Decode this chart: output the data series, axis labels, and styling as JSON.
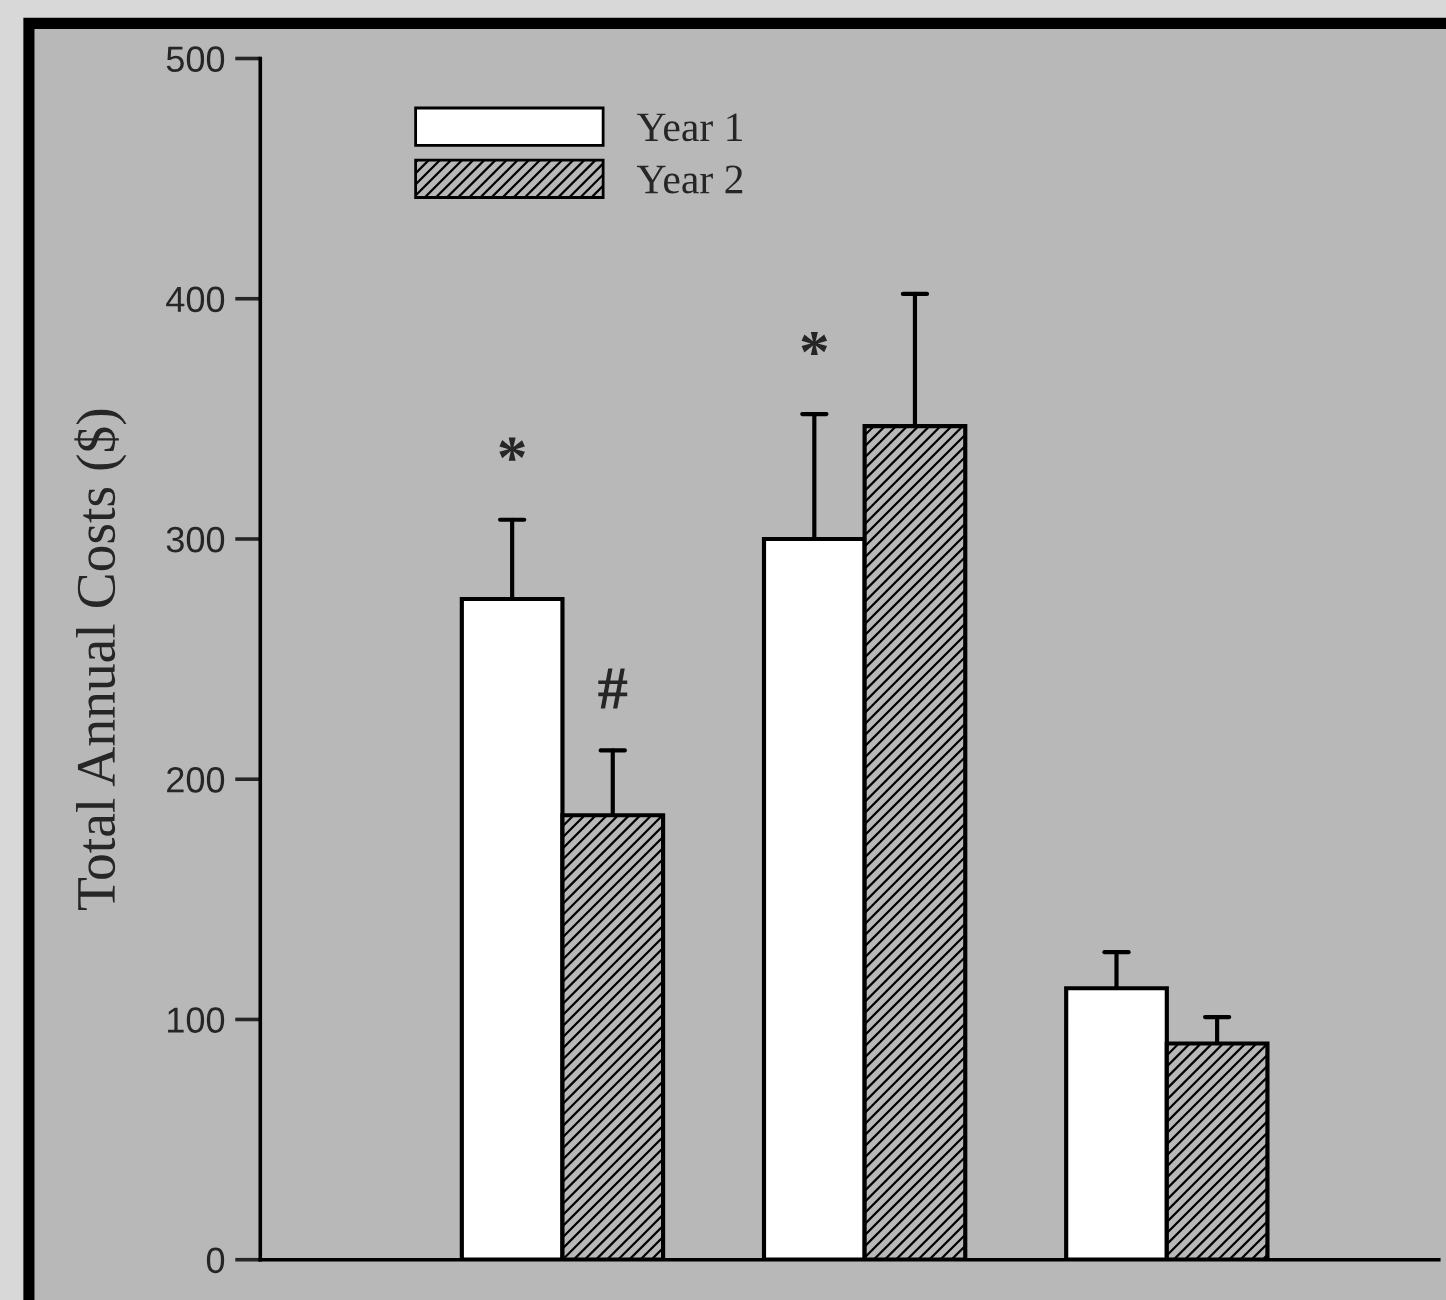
{
  "chart_data": {
    "type": "bar",
    "ylabel": "Total Annual Costs ($)",
    "categories": [
      null,
      null,
      null
    ],
    "series": [
      {
        "name": "Year 1",
        "color": "#ffffff",
        "values": [
          275,
          300,
          113
        ],
        "errors": [
          [
            275,
            308
          ],
          [
            300,
            352
          ],
          [
            113,
            128
          ]
        ],
        "value_labels": [
          "*",
          "*",
          null
        ]
      },
      {
        "name": "Year 2",
        "color": "#000000",
        "values": [
          185,
          347,
          90
        ],
        "errors": [
          [
            185,
            212
          ],
          [
            347,
            402
          ],
          [
            90,
            101
          ]
        ],
        "value_labels": [
          "#",
          null,
          null
        ]
      }
    ],
    "ylim": [
      0,
      500
    ],
    "yticks": [
      0,
      100,
      200,
      300,
      400,
      500
    ],
    "tick_labels": "y",
    "legend": "top left",
    "grid": false
  }
}
